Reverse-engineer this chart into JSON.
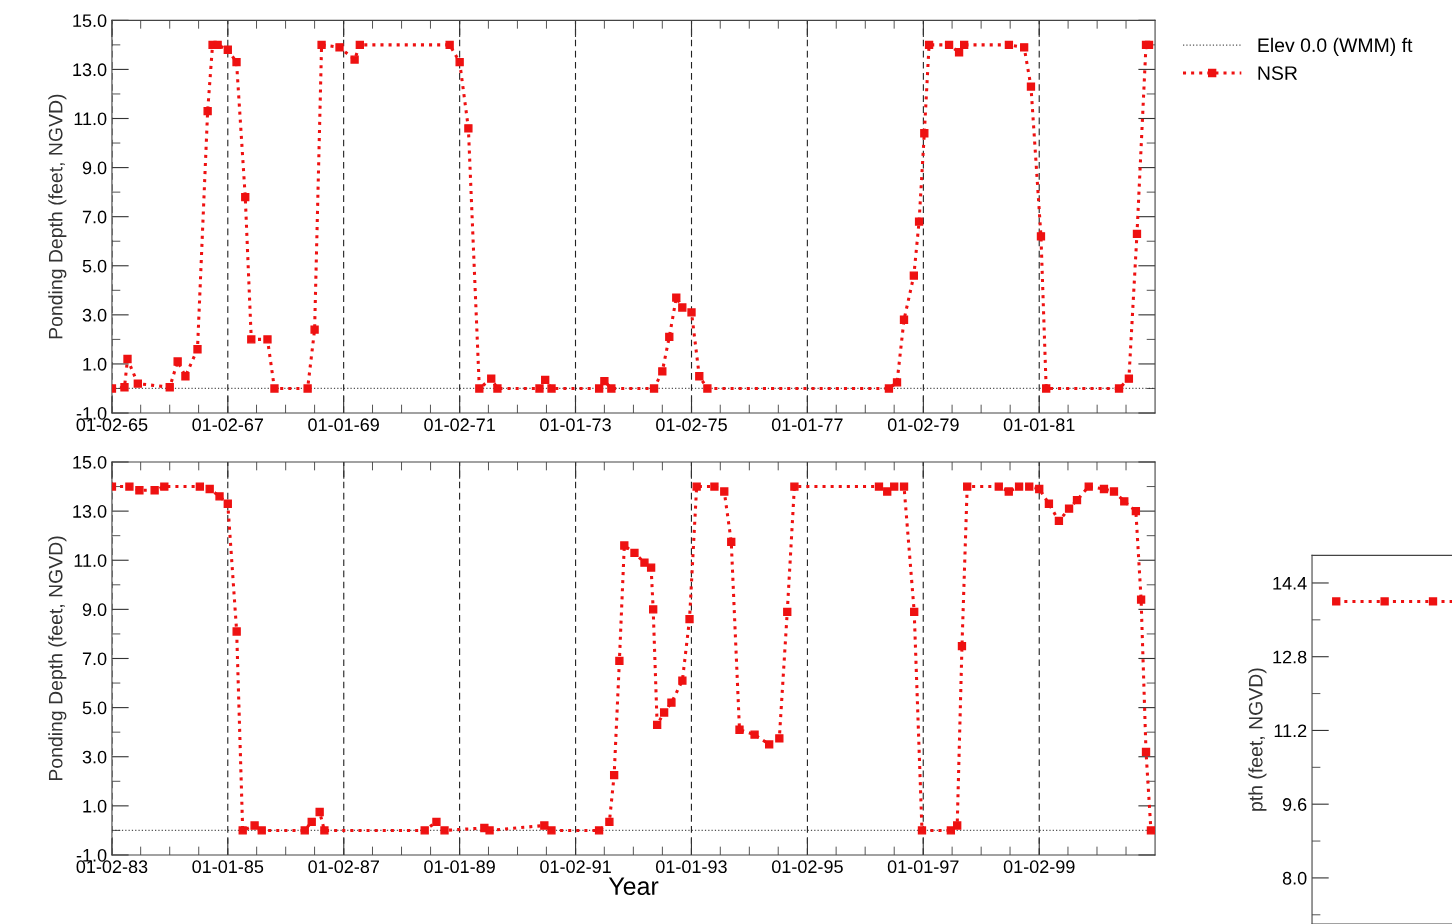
{
  "chart_data": [
    {
      "type": "line",
      "ylabel": "Ponding Depth (feet, NGVD)",
      "legend": "right",
      "grid": "x",
      "marker": "square",
      "line_style": "dotted",
      "xlim": [
        "1965-01-02",
        "1983-01-01"
      ],
      "xticks": [
        {
          "value": "1965-01-02",
          "label": "01-02-65"
        },
        {
          "value": "1965-07-02",
          "label": null
        },
        {
          "value": "1966-01-01",
          "label": null
        },
        {
          "value": "1966-07-02",
          "label": null
        },
        {
          "value": "1967-01-02",
          "label": "01-02-67"
        },
        {
          "value": "1967-07-02",
          "label": null
        },
        {
          "value": "1968-01-01",
          "label": null
        },
        {
          "value": "1968-07-02",
          "label": null
        },
        {
          "value": "1969-01-01",
          "label": "01-01-69"
        },
        {
          "value": "1969-07-02",
          "label": null
        },
        {
          "value": "1970-01-01",
          "label": null
        },
        {
          "value": "1970-07-02",
          "label": null
        },
        {
          "value": "1971-01-02",
          "label": "01-02-71"
        },
        {
          "value": "1971-07-02",
          "label": null
        },
        {
          "value": "1972-01-01",
          "label": null
        },
        {
          "value": "1972-07-02",
          "label": null
        },
        {
          "value": "1973-01-01",
          "label": "01-01-73"
        },
        {
          "value": "1973-07-02",
          "label": null
        },
        {
          "value": "1974-01-01",
          "label": null
        },
        {
          "value": "1974-07-02",
          "label": null
        },
        {
          "value": "1975-01-02",
          "label": "01-02-75"
        },
        {
          "value": "1975-07-02",
          "label": null
        },
        {
          "value": "1976-01-01",
          "label": null
        },
        {
          "value": "1976-07-02",
          "label": null
        },
        {
          "value": "1977-01-01",
          "label": "01-01-77"
        },
        {
          "value": "1977-07-02",
          "label": null
        },
        {
          "value": "1978-01-01",
          "label": null
        },
        {
          "value": "1978-07-02",
          "label": null
        },
        {
          "value": "1979-01-02",
          "label": "01-02-79"
        },
        {
          "value": "1979-07-02",
          "label": null
        },
        {
          "value": "1980-01-01",
          "label": null
        },
        {
          "value": "1980-07-02",
          "label": null
        },
        {
          "value": "1981-01-01",
          "label": "01-01-81"
        },
        {
          "value": "1981-07-02",
          "label": null
        },
        {
          "value": "1982-01-01",
          "label": null
        },
        {
          "value": "1982-07-02",
          "label": null
        }
      ],
      "ylim": [
        -1.0,
        15.0
      ],
      "yticks": [
        {
          "value": -1,
          "label": "-1.0"
        },
        {
          "value": 0,
          "label": null
        },
        {
          "value": 1,
          "label": "1.0"
        },
        {
          "value": 2,
          "label": null
        },
        {
          "value": 3,
          "label": "3.0"
        },
        {
          "value": 4,
          "label": null
        },
        {
          "value": 5,
          "label": "5.0"
        },
        {
          "value": 6,
          "label": null
        },
        {
          "value": 7,
          "label": "7.0"
        },
        {
          "value": 8,
          "label": null
        },
        {
          "value": 9,
          "label": "9.0"
        },
        {
          "value": 10,
          "label": null
        },
        {
          "value": 11,
          "label": "11.0"
        },
        {
          "value": 12,
          "label": null
        },
        {
          "value": 13,
          "label": "13.0"
        },
        {
          "value": 14,
          "label": null
        },
        {
          "value": 15,
          "label": "15.0"
        }
      ],
      "ref_lines": [
        {
          "axis": "y",
          "value": 0,
          "label": "Elev 0.0 (WMM) ft",
          "color": "#555555",
          "line_style": "dotted"
        }
      ],
      "series": [
        {
          "name": "NSR",
          "color": "#ee1111",
          "x": [
            "1965-01-02",
            "1965-03-22",
            "1965-04-10",
            "1965-06-14",
            "1966-01-01",
            "1966-02-20",
            "1966-04-10",
            "1966-06-25",
            "1966-08-28",
            "1966-09-28",
            "1966-10-30",
            "1967-01-02",
            "1967-02-26",
            "1967-04-22",
            "1967-05-30",
            "1967-09-09",
            "1967-10-23",
            "1968-05-19",
            "1968-07-02",
            "1968-08-15",
            "1968-12-06",
            "1969-03-11",
            "1969-04-13",
            "1970-10-31",
            "1971-01-02",
            "1971-02-26",
            "1971-05-06",
            "1971-07-20",
            "1971-08-28",
            "1972-05-19",
            "1972-06-24",
            "1972-08-03",
            "1973-05-30",
            "1973-07-02",
            "1973-08-15",
            "1974-05-11",
            "1974-07-02",
            "1974-08-15",
            "1974-09-28",
            "1974-11-05",
            "1975-01-02",
            "1975-02-20",
            "1975-04-12",
            "1978-05-30",
            "1978-07-20",
            "1978-09-02",
            "1978-11-03",
            "1978-12-06",
            "1979-01-08",
            "1979-02-07",
            "1979-06-13",
            "1979-08-15",
            "1979-09-16",
            "1980-06-24",
            "1980-09-28",
            "1980-11-10",
            "1981-01-12",
            "1981-02-14",
            "1982-05-19",
            "1982-07-20",
            "1982-09-09",
            "1982-11-05",
            "1982-11-24"
          ],
          "values": [
            0.0,
            0.05,
            1.2,
            0.2,
            0.05,
            1.1,
            0.5,
            1.6,
            11.3,
            14.0,
            14.0,
            13.8,
            13.3,
            7.8,
            2.0,
            2.0,
            0.0,
            0.0,
            2.4,
            14.0,
            13.9,
            13.4,
            14.0,
            14.0,
            13.3,
            10.6,
            0.0,
            0.4,
            0.0,
            0.0,
            0.35,
            0.0,
            0.0,
            0.3,
            0.0,
            0.0,
            0.7,
            2.1,
            3.7,
            3.3,
            3.1,
            0.5,
            0.0,
            0.0,
            0.25,
            2.8,
            4.6,
            6.8,
            10.4,
            14.0,
            14.0,
            13.7,
            14.0,
            14.0,
            13.9,
            12.3,
            6.2,
            0.0,
            0.0,
            0.4,
            6.3,
            14.0,
            14.0
          ]
        }
      ]
    },
    {
      "type": "line",
      "xlabel": "Year",
      "ylabel": "Ponding Depth (feet, NGVD)",
      "grid": "x",
      "marker": "square",
      "line_style": "dotted",
      "xlim": [
        "1983-01-02",
        "2001-01-01"
      ],
      "xticks": [
        {
          "value": "1983-01-02",
          "label": "01-02-83"
        },
        {
          "value": "1983-07-02",
          "label": null
        },
        {
          "value": "1984-01-01",
          "label": null
        },
        {
          "value": "1984-07-02",
          "label": null
        },
        {
          "value": "1985-01-01",
          "label": "01-01-85"
        },
        {
          "value": "1985-07-02",
          "label": null
        },
        {
          "value": "1986-01-01",
          "label": null
        },
        {
          "value": "1986-07-02",
          "label": null
        },
        {
          "value": "1987-01-02",
          "label": "01-02-87"
        },
        {
          "value": "1987-07-02",
          "label": null
        },
        {
          "value": "1988-01-01",
          "label": null
        },
        {
          "value": "1988-07-02",
          "label": null
        },
        {
          "value": "1989-01-01",
          "label": "01-01-89"
        },
        {
          "value": "1989-07-02",
          "label": null
        },
        {
          "value": "1990-01-01",
          "label": null
        },
        {
          "value": "1990-07-02",
          "label": null
        },
        {
          "value": "1991-01-02",
          "label": "01-02-91"
        },
        {
          "value": "1991-07-02",
          "label": null
        },
        {
          "value": "1992-01-01",
          "label": null
        },
        {
          "value": "1992-07-02",
          "label": null
        },
        {
          "value": "1993-01-01",
          "label": "01-01-93"
        },
        {
          "value": "1993-07-02",
          "label": null
        },
        {
          "value": "1994-01-01",
          "label": null
        },
        {
          "value": "1994-07-02",
          "label": null
        },
        {
          "value": "1995-01-02",
          "label": "01-02-95"
        },
        {
          "value": "1995-07-02",
          "label": null
        },
        {
          "value": "1996-01-01",
          "label": null
        },
        {
          "value": "1996-07-02",
          "label": null
        },
        {
          "value": "1997-01-01",
          "label": "01-01-97"
        },
        {
          "value": "1997-07-02",
          "label": null
        },
        {
          "value": "1998-01-01",
          "label": null
        },
        {
          "value": "1998-07-02",
          "label": null
        },
        {
          "value": "1999-01-02",
          "label": "01-02-99"
        },
        {
          "value": "1999-07-02",
          "label": null
        },
        {
          "value": "2000-01-01",
          "label": null
        },
        {
          "value": "2000-07-02",
          "label": null
        }
      ],
      "ylim": [
        -1.0,
        15.0
      ],
      "yticks": [
        {
          "value": -1,
          "label": "-1.0"
        },
        {
          "value": 0,
          "label": null
        },
        {
          "value": 1,
          "label": "1.0"
        },
        {
          "value": 2,
          "label": null
        },
        {
          "value": 3,
          "label": "3.0"
        },
        {
          "value": 4,
          "label": null
        },
        {
          "value": 5,
          "label": "5.0"
        },
        {
          "value": 6,
          "label": null
        },
        {
          "value": 7,
          "label": "7.0"
        },
        {
          "value": 8,
          "label": null
        },
        {
          "value": 9,
          "label": "9.0"
        },
        {
          "value": 10,
          "label": null
        },
        {
          "value": 11,
          "label": "11.0"
        },
        {
          "value": 12,
          "label": null
        },
        {
          "value": 13,
          "label": "13.0"
        },
        {
          "value": 14,
          "label": null
        },
        {
          "value": 15,
          "label": "15.0"
        }
      ],
      "ref_lines": [
        {
          "axis": "y",
          "value": 0,
          "color": "#555555",
          "line_style": "dotted"
        }
      ],
      "series": [
        {
          "color": "#ee1111",
          "x": [
            "1983-01-02",
            "1983-04-22",
            "1983-06-24",
            "1983-09-28",
            "1983-11-28",
            "1984-07-09",
            "1984-09-09",
            "1984-11-10",
            "1985-01-01",
            "1985-02-26",
            "1985-04-05",
            "1985-06-19",
            "1985-08-03",
            "1986-05-01",
            "1986-06-14",
            "1986-08-03",
            "1986-09-02",
            "1988-05-26",
            "1988-08-08",
            "1988-09-28",
            "1989-06-06",
            "1989-07-09",
            "1990-06-19",
            "1990-08-03",
            "1991-05-30",
            "1991-08-03",
            "1991-09-02",
            "1991-10-05",
            "1991-11-05",
            "1992-01-08",
            "1992-03-11",
            "1992-04-22",
            "1992-05-05",
            "1992-05-30",
            "1992-07-13",
            "1992-08-28",
            "1992-11-05",
            "1992-12-20",
            "1993-02-03",
            "1993-05-26",
            "1993-07-27",
            "1993-09-09",
            "1993-10-31",
            "1994-02-03",
            "1994-05-06",
            "1994-07-09",
            "1994-08-28",
            "1994-10-12",
            "1996-03-28",
            "1996-05-19",
            "1996-07-02",
            "1996-09-02",
            "1996-11-05",
            "1996-12-24",
            "1997-06-24",
            "1997-08-03",
            "1997-09-02",
            "1997-10-05",
            "1998-04-22",
            "1998-06-24",
            "1998-08-28",
            "1998-10-31",
            "1999-01-02",
            "1999-03-04",
            "1999-05-06",
            "1999-07-09",
            "1999-08-28",
            "1999-11-10",
            "2000-02-14",
            "2000-04-17",
            "2000-06-21",
            "2000-09-02",
            "2000-10-05",
            "2000-11-05",
            "2000-12-06"
          ],
          "values": [
            14.0,
            14.0,
            13.85,
            13.85,
            14.0,
            14.0,
            13.9,
            13.6,
            13.3,
            8.1,
            0.0,
            0.2,
            0.0,
            0.0,
            0.35,
            0.75,
            0.0,
            0.0,
            0.35,
            0.0,
            0.1,
            0.0,
            0.2,
            0.0,
            0.0,
            0.35,
            2.25,
            6.9,
            11.6,
            11.3,
            10.9,
            10.7,
            9.0,
            4.3,
            4.8,
            5.2,
            6.1,
            8.6,
            14.0,
            14.0,
            13.8,
            11.75,
            4.1,
            3.9,
            3.5,
            3.75,
            8.9,
            14.0,
            14.0,
            13.8,
            14.0,
            14.0,
            8.9,
            0.0,
            0.0,
            0.2,
            7.5,
            14.0,
            14.0,
            13.8,
            14.0,
            14.0,
            13.9,
            13.3,
            12.6,
            13.1,
            13.45,
            14.0,
            13.9,
            13.8,
            13.4,
            13.0,
            9.4,
            3.2,
            0.0
          ]
        }
      ]
    },
    {
      "type": "line",
      "ylabel": "pth (feet, NGVD)",
      "tick_labels": "y",
      "marker": "square",
      "line_style": "dotted",
      "categories": [
        null,
        null,
        null,
        null,
        null,
        null
      ],
      "ylim": [
        7.0,
        15.0
      ],
      "yticks": [
        {
          "value": 7.2,
          "label": null
        },
        {
          "value": 8,
          "label": "8.0"
        },
        {
          "value": 8.8,
          "label": null
        },
        9.6,
        {
          "value": 10.4,
          "label": null
        },
        11.2,
        {
          "value": 12.0,
          "label": null
        },
        12.8,
        {
          "value": 13.6,
          "label": null
        },
        14.4
      ],
      "series": [
        {
          "color": "#ee1111",
          "values": [
            14.0,
            14.0,
            14.0,
            14.0,
            14.0,
            14.0
          ]
        }
      ]
    }
  ]
}
